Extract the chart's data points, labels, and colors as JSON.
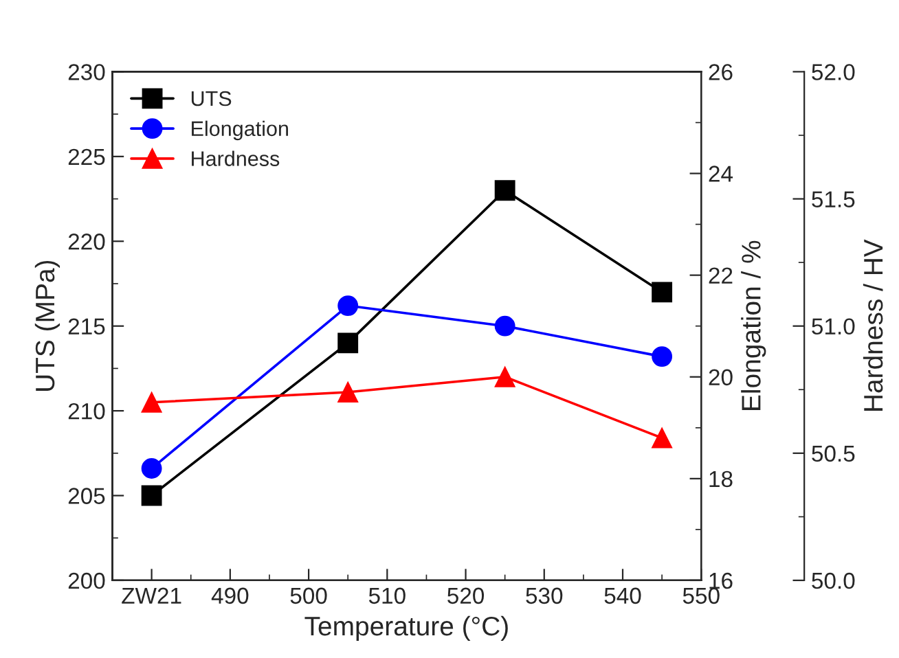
{
  "chart_data": {
    "type": "line",
    "xlabel": "Temperature (°C)",
    "ylabel": "UTS (MPa)",
    "y2label": "Elongation / %",
    "y3label": "Hardness / HV",
    "xlim": [
      475,
      550
    ],
    "xticks": [
      {
        "value": 480,
        "label": "ZW21"
      },
      490,
      500,
      510,
      520,
      530,
      540,
      550
    ],
    "ylim": [
      200,
      230
    ],
    "yticks": [
      200,
      205,
      210,
      215,
      220,
      225,
      230
    ],
    "y2lim": [
      16,
      26
    ],
    "y2ticks": [
      16,
      18,
      20,
      22,
      24,
      26
    ],
    "y3lim": [
      50,
      52
    ],
    "y3ticks": [
      {
        "value": 50,
        "label": "50.0"
      },
      {
        "value": 50.5,
        "label": "50.5"
      },
      {
        "value": 51,
        "label": "51.0"
      },
      {
        "value": 51.5,
        "label": "51.5"
      },
      {
        "value": 52,
        "label": "52.0"
      }
    ],
    "x": [
      480,
      505,
      525,
      545
    ],
    "series": [
      {
        "name": "UTS",
        "color": "#000000",
        "values": [
          205,
          214,
          223,
          217
        ],
        "marker": "square"
      },
      {
        "name": "Elongation",
        "color": "#0000ff",
        "values": [
          18.2,
          21.4,
          21.0,
          20.4
        ],
        "marker": "circle",
        "axis": "y2"
      },
      {
        "name": "Hardness",
        "color": "#ff0000",
        "values": [
          50.7,
          50.74,
          50.8,
          50.56
        ],
        "marker": "triangle",
        "axis": "y3"
      }
    ],
    "legend": "top left",
    "grid": false
  }
}
